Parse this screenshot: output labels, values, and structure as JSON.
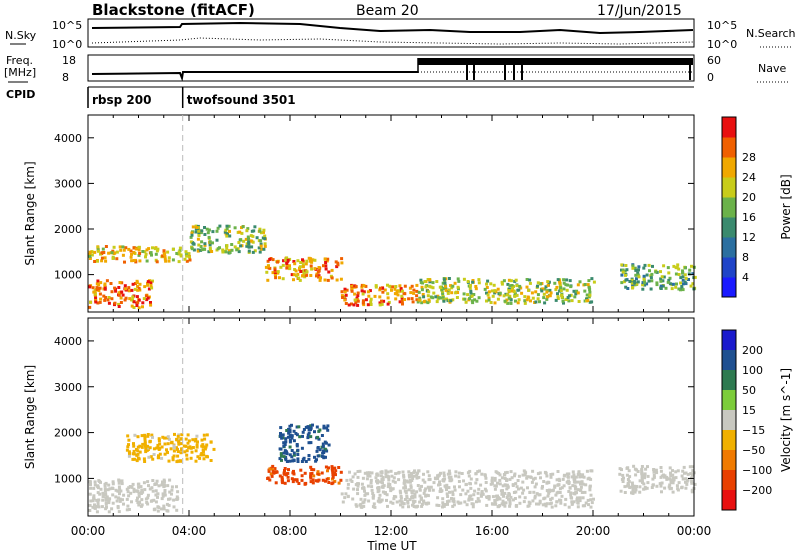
{
  "header": {
    "station": "Blackstone (fitACF)",
    "beam": "Beam 20",
    "date": "17/Jun/2015"
  },
  "strip_labels": {
    "nsky": "N.Sky",
    "nsky_ticks": [
      "10^5",
      "10^0"
    ],
    "nsearch": "N.Search",
    "nsearch_ticks": [
      "10^5",
      "10^0"
    ],
    "freq": "Freq.",
    "freq_unit": "[MHz]",
    "freq_ticks": [
      "18",
      "8"
    ],
    "nave": "Nave",
    "nave_ticks": [
      "60",
      "0"
    ],
    "cpid": "CPID"
  },
  "cpid_modes": [
    {
      "name": "rbsp 200",
      "start_hour": 0
    },
    {
      "name": "twofsound 3501",
      "start_hour": 3.75
    }
  ],
  "chart_data": [
    {
      "type": "heatmap",
      "quantity": "Power",
      "ylabel": "Slant Range [km]",
      "xlabel": "Time UT",
      "x_ticks": [
        "00:00",
        "04:00",
        "08:00",
        "12:00",
        "16:00",
        "20:00",
        "00:00"
      ],
      "x_range_hours": [
        0,
        24
      ],
      "y_ticks": [
        1000,
        2000,
        3000,
        4000
      ],
      "y_range_km": [
        180,
        4500
      ],
      "colorbar": {
        "label": "Power [dB]",
        "ticks": [
          4,
          8,
          12,
          16,
          20,
          24,
          28
        ],
        "range": [
          0,
          32
        ]
      },
      "regions": [
        {
          "t0": 0.0,
          "t1": 4.0,
          "r0": 1300,
          "r1": 1650,
          "value": 22
        },
        {
          "t0": 0.0,
          "t1": 2.5,
          "r0": 300,
          "r1": 900,
          "value": 26
        },
        {
          "t0": 4.0,
          "t1": 7.0,
          "r0": 1500,
          "r1": 2100,
          "value": 17
        },
        {
          "t0": 7.0,
          "t1": 10.0,
          "r0": 900,
          "r1": 1400,
          "value": 24
        },
        {
          "t0": 10.0,
          "t1": 13.0,
          "r0": 350,
          "r1": 800,
          "value": 25
        },
        {
          "t0": 13.0,
          "t1": 20.0,
          "r0": 400,
          "r1": 950,
          "value": 18
        },
        {
          "t0": 21.0,
          "t1": 24.0,
          "r0": 700,
          "r1": 1250,
          "value": 15
        }
      ]
    },
    {
      "type": "heatmap",
      "quantity": "Velocity",
      "ylabel": "Slant Range [km]",
      "xlabel": "Time UT",
      "x_ticks": [
        "00:00",
        "04:00",
        "08:00",
        "12:00",
        "16:00",
        "20:00",
        "00:00"
      ],
      "x_range_hours": [
        0,
        24
      ],
      "y_ticks": [
        1000,
        2000,
        3000,
        4000
      ],
      "y_range_km": [
        180,
        4500
      ],
      "colorbar": {
        "label": "Velocity [m s^-1]",
        "ticks": [
          200,
          100,
          50,
          15,
          -15,
          -50,
          -100,
          -200
        ],
        "range": [
          -250,
          250
        ]
      },
      "regions": [
        {
          "t0": 0.0,
          "t1": 3.5,
          "r0": 300,
          "r1": 1000,
          "value": 0
        },
        {
          "t0": 1.5,
          "t1": 5.0,
          "r0": 1400,
          "r1": 2000,
          "value": -40
        },
        {
          "t0": 7.0,
          "t1": 10.0,
          "r0": 900,
          "r1": 1300,
          "value": -150
        },
        {
          "t0": 7.5,
          "t1": 9.5,
          "r0": 1400,
          "r1": 2200,
          "value": 150
        },
        {
          "t0": 10.0,
          "t1": 20.0,
          "r0": 400,
          "r1": 1200,
          "value": 0
        },
        {
          "t0": 21.0,
          "t1": 24.0,
          "r0": 700,
          "r1": 1300,
          "value": 0
        }
      ]
    }
  ]
}
